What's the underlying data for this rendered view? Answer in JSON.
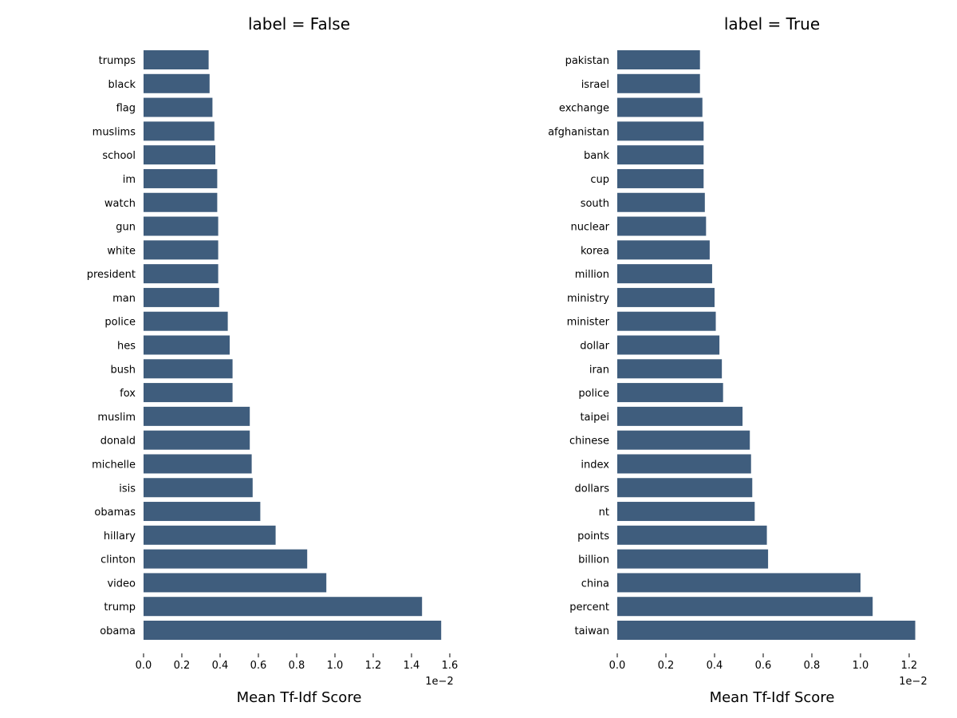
{
  "chart_data": [
    {
      "type": "bar",
      "orientation": "horizontal",
      "title": "label = False",
      "xlabel": "Mean Tf-Idf Score",
      "ylabel": "",
      "xlim": [
        0,
        1.6
      ],
      "xticks": [
        "0.0",
        "0.2",
        "0.4",
        "0.6",
        "0.8",
        "1.0",
        "1.2",
        "1.4",
        "1.6"
      ],
      "offset_text": "1e−2",
      "grid": false,
      "bar_color": "#3f5d7d",
      "categories": [
        "trumps",
        "black",
        "flag",
        "muslims",
        "school",
        "im",
        "watch",
        "gun",
        "white",
        "president",
        "man",
        "police",
        "hes",
        "bush",
        "fox",
        "muslim",
        "donald",
        "michelle",
        "isis",
        "obamas",
        "hillary",
        "clinton",
        "video",
        "trump",
        "obama"
      ],
      "values": [
        0.34,
        0.345,
        0.36,
        0.37,
        0.375,
        0.385,
        0.385,
        0.39,
        0.39,
        0.39,
        0.395,
        0.44,
        0.45,
        0.465,
        0.465,
        0.555,
        0.555,
        0.565,
        0.57,
        0.61,
        0.69,
        0.855,
        0.955,
        1.455,
        1.555
      ]
    },
    {
      "type": "bar",
      "orientation": "horizontal",
      "title": "label = True",
      "xlabel": "Mean Tf-Idf Score",
      "ylabel": "",
      "xlim": [
        0,
        1.2
      ],
      "xticks": [
        "0.0",
        "0.2",
        "0.4",
        "0.6",
        "0.8",
        "1.0",
        "1.2"
      ],
      "offset_text": "1e−2",
      "grid": false,
      "bar_color": "#3f5d7d",
      "categories": [
        "pakistan",
        "israel",
        "exchange",
        "afghanistan",
        "bank",
        "cup",
        "south",
        "nuclear",
        "korea",
        "million",
        "ministry",
        "minister",
        "dollar",
        "iran",
        "police",
        "taipei",
        "chinese",
        "index",
        "dollars",
        "nt",
        "points",
        "billion",
        "china",
        "percent",
        "taiwan"
      ],
      "values": [
        0.34,
        0.34,
        0.35,
        0.355,
        0.355,
        0.355,
        0.36,
        0.365,
        0.38,
        0.39,
        0.4,
        0.405,
        0.42,
        0.43,
        0.435,
        0.515,
        0.545,
        0.55,
        0.555,
        0.565,
        0.615,
        0.62,
        1.0,
        1.05,
        1.225
      ]
    }
  ]
}
